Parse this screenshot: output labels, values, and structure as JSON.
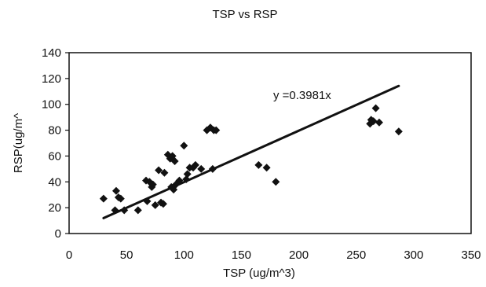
{
  "chart_data": {
    "type": "scatter",
    "title": "TSP vs RSP",
    "xlabel": "TSP (ug/m^3)",
    "ylabel": "RSP(ug/m^",
    "xlim": [
      0,
      350
    ],
    "ylim": [
      0,
      140
    ],
    "x_ticks": [
      0,
      50,
      100,
      150,
      200,
      250,
      300,
      350
    ],
    "y_ticks": [
      0,
      20,
      40,
      60,
      80,
      100,
      120,
      140
    ],
    "grid": false,
    "legend": "none",
    "marker": "diamond",
    "colors": {
      "points": "#111111",
      "trendline": "#111111",
      "frame": "#111111"
    },
    "points": [
      [
        30,
        27
      ],
      [
        40,
        18
      ],
      [
        41,
        33
      ],
      [
        43,
        28
      ],
      [
        45,
        27
      ],
      [
        48,
        18
      ],
      [
        60,
        18
      ],
      [
        67,
        41
      ],
      [
        68,
        25
      ],
      [
        70,
        40
      ],
      [
        72,
        36
      ],
      [
        73,
        38
      ],
      [
        75,
        22
      ],
      [
        78,
        49
      ],
      [
        80,
        24
      ],
      [
        82,
        23
      ],
      [
        83,
        47
      ],
      [
        86,
        61
      ],
      [
        88,
        58
      ],
      [
        89,
        36
      ],
      [
        90,
        60
      ],
      [
        91,
        34
      ],
      [
        92,
        56
      ],
      [
        93,
        38
      ],
      [
        96,
        41
      ],
      [
        100,
        68
      ],
      [
        102,
        42
      ],
      [
        103,
        46
      ],
      [
        105,
        51
      ],
      [
        108,
        51
      ],
      [
        110,
        53
      ],
      [
        115,
        50
      ],
      [
        120,
        80
      ],
      [
        123,
        82
      ],
      [
        125,
        50
      ],
      [
        126,
        80
      ],
      [
        128,
        80
      ],
      [
        165,
        53
      ],
      [
        172,
        51
      ],
      [
        180,
        40
      ],
      [
        262,
        85
      ],
      [
        263,
        88
      ],
      [
        265,
        87
      ],
      [
        267,
        97
      ],
      [
        270,
        86
      ],
      [
        287,
        79
      ]
    ],
    "trendline": {
      "label": "y =0.3981x",
      "slope": 0.3981,
      "x_start": 30,
      "x_end": 287
    }
  }
}
